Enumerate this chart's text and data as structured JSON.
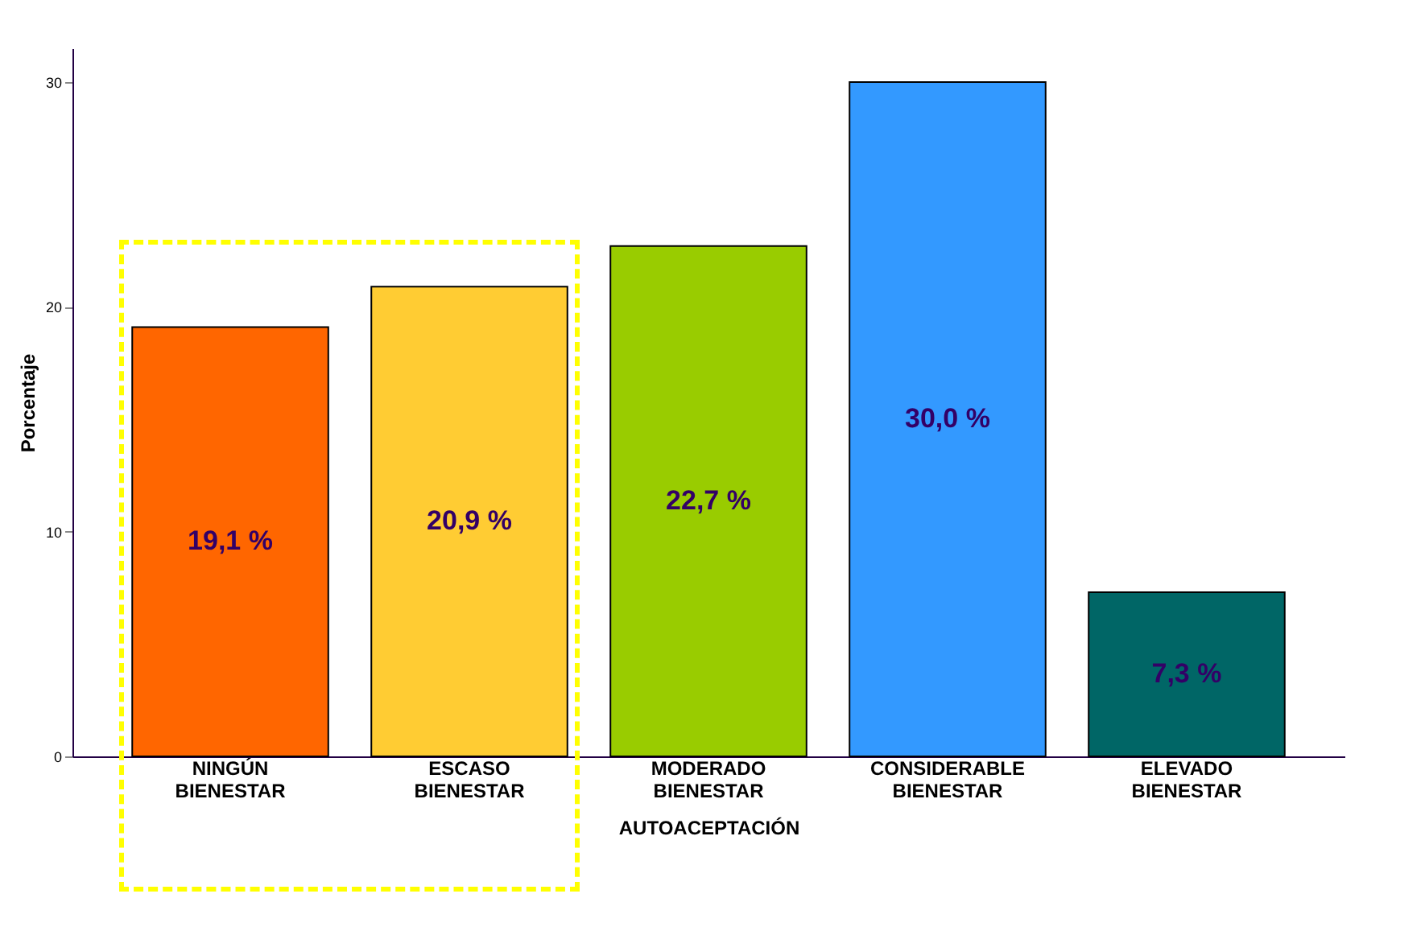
{
  "chart_data": {
    "type": "bar",
    "xlabel": "AUTOACEPTACIÓN",
    "ylabel": "Porcentaje",
    "categories": [
      "NINGÚN BIENESTAR",
      "ESCASO BIENESTAR",
      "MODERADO BIENESTAR",
      "CONSIDERABLE BIENESTAR",
      "ELEVADO BIENESTAR"
    ],
    "values": [
      19.1,
      20.9,
      22.7,
      30.0,
      7.3
    ],
    "colors": [
      "#ff6600",
      "#ffcc33",
      "#99cc00",
      "#3399ff",
      "#006666"
    ],
    "value_labels": [
      "19,1 %",
      "20,9 %",
      "22,7 %",
      "30,0 %",
      "7,3 %"
    ],
    "ylim": [
      0,
      31.5
    ],
    "yticks": [
      0,
      10,
      20,
      30
    ],
    "grid": false,
    "legend": false
  }
}
